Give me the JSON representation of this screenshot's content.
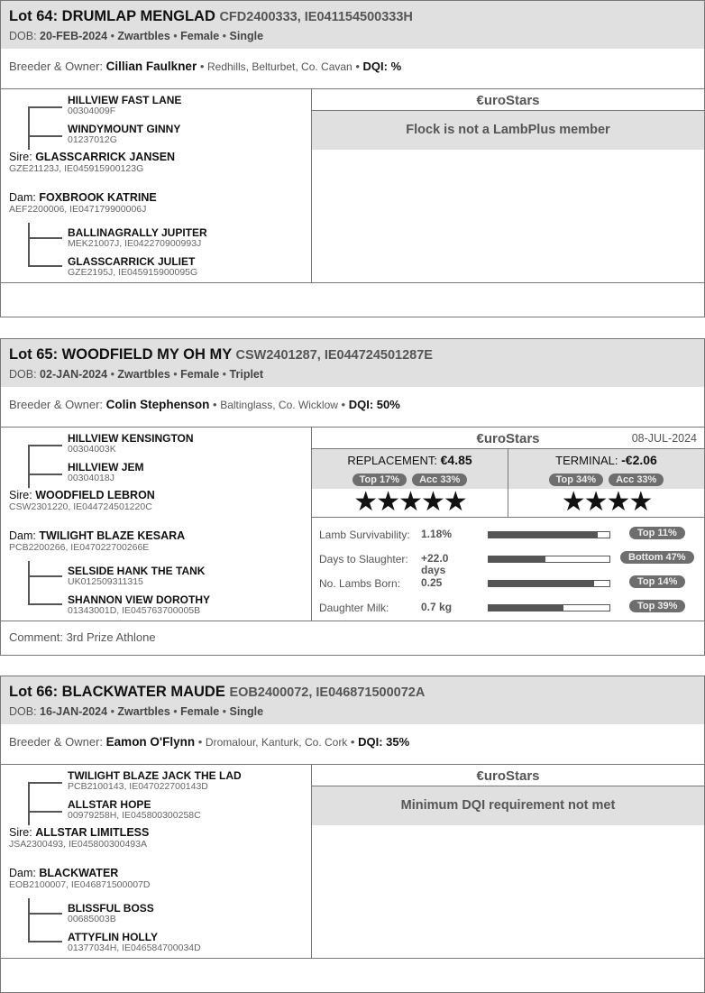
{
  "eurostars_label": "€uroStars",
  "lots": [
    {
      "title": "Lot 64: DRUMLAP MENGLAD",
      "ids": "CFD2400333, IE041154500333H",
      "dob_label": "DOB:",
      "dob": "20-FEB-2024",
      "breed": "Zwartbles",
      "sex": "Female",
      "birth_type": "Single",
      "breeder_label": "Breeder & Owner:",
      "breeder": "Cillian Faulkner",
      "location": "Redhills, Belturbet, Co. Cavan",
      "dqi": "DQI: %",
      "pedigree": {
        "sire_sire": {
          "name": "HILLVIEW FAST LANE",
          "id": "00304009F"
        },
        "sire_dam": {
          "name": "WINDYMOUNT GINNY",
          "id": "01237012G"
        },
        "sire_label": "Sire:",
        "sire": {
          "name": "GLASSCARRICK JANSEN",
          "id": "GZE21123J, IE045915900123G"
        },
        "dam_label": "Dam:",
        "dam": {
          "name": "FOXBROOK KATRINE",
          "id": "AEF2200006, IE047179900006J"
        },
        "dam_sire": {
          "name": "BALLINAGRALLY JUPITER",
          "id": "MEK21007J, IE042270900993J"
        },
        "dam_dam": {
          "name": "GLASSCARRICK JULIET",
          "id": "GZE2195J, IE045915900095G"
        }
      },
      "eurostars": {
        "date": "",
        "message": "Flock is not a LambPlus member"
      },
      "comment": ""
    },
    {
      "title": "Lot 65: WOODFIELD MY OH MY",
      "ids": "CSW2401287, IE044724501287E",
      "dob_label": "DOB:",
      "dob": "02-JAN-2024",
      "breed": "Zwartbles",
      "sex": "Female",
      "birth_type": "Triplet",
      "breeder_label": "Breeder & Owner:",
      "breeder": "Colin Stephenson",
      "location": "Baltinglass, Co. Wicklow",
      "dqi": "DQI: 50%",
      "pedigree": {
        "sire_sire": {
          "name": "HILLVIEW KENSINGTON",
          "id": "00304003K"
        },
        "sire_dam": {
          "name": "HILLVIEW JEM",
          "id": "00304018J"
        },
        "sire_label": "Sire:",
        "sire": {
          "name": "WOODFIELD LEBRON",
          "id": "CSW2301220, IE044724501220C"
        },
        "dam_label": "Dam:",
        "dam": {
          "name": "TWILIGHT BLAZE KESARA",
          "id": "PCB2200266, IE047022700266E"
        },
        "dam_sire": {
          "name": "SELSIDE HANK THE TANK",
          "id": "UK012509311315"
        },
        "dam_dam": {
          "name": "SHANNON VIEW DOROTHY",
          "id": "01343001D, IE045763700005B"
        }
      },
      "eurostars": {
        "date": "08-JUL-2024",
        "replacement": {
          "label": "REPLACEMENT:",
          "value": "€4.85",
          "top": "Top 17%",
          "acc": "Acc 33%",
          "stars": 5
        },
        "terminal": {
          "label": "TERMINAL:",
          "value": "-€2.06",
          "top": "Top 34%",
          "acc": "Acc 33%",
          "stars": 4
        },
        "traits": [
          {
            "label": "Lamb Survivability:",
            "value": "1.18%",
            "percentile_fill": 0.9,
            "rank": "Top 11%"
          },
          {
            "label": "Days to Slaughter:",
            "value": "+22.0 days",
            "percentile_fill": 0.47,
            "rank": "Bottom 47%"
          },
          {
            "label": "No. Lambs Born:",
            "value": "0.25",
            "percentile_fill": 0.87,
            "rank": "Top 14%"
          },
          {
            "label": "Daughter Milk:",
            "value": "0.7 kg",
            "percentile_fill": 0.62,
            "rank": "Top 39%"
          }
        ]
      },
      "comment": "Comment: 3rd Prize Athlone"
    },
    {
      "title": "Lot 66: BLACKWATER MAUDE",
      "ids": "EOB2400072, IE046871500072A",
      "dob_label": "DOB:",
      "dob": "16-JAN-2024",
      "breed": "Zwartbles",
      "sex": "Female",
      "birth_type": "Single",
      "breeder_label": "Breeder & Owner:",
      "breeder": "Eamon O'Flynn",
      "location": "Dromalour, Kanturk, Co. Cork",
      "dqi": "DQI: 35%",
      "pedigree": {
        "sire_sire": {
          "name": "TWILIGHT BLAZE JACK THE LAD",
          "id": "PCB2100143, IE047022700143D"
        },
        "sire_dam": {
          "name": "ALLSTAR HOPE",
          "id": "00979258H, IE045800300258C"
        },
        "sire_label": "Sire:",
        "sire": {
          "name": "ALLSTAR LIMITLESS",
          "id": "JSA2300493, IE045800300493A"
        },
        "dam_label": "Dam:",
        "dam": {
          "name": "BLACKWATER",
          "id": "EOB2100007, IE046871500007D"
        },
        "dam_sire": {
          "name": "BLISSFUL BOSS",
          "id": "00685003B"
        },
        "dam_dam": {
          "name": "ATTYFLIN HOLLY",
          "id": "01377034H, IE046584700034D"
        }
      },
      "eurostars": {
        "date": "",
        "message": "Minimum DQI requirement not met"
      },
      "comment": ""
    }
  ]
}
